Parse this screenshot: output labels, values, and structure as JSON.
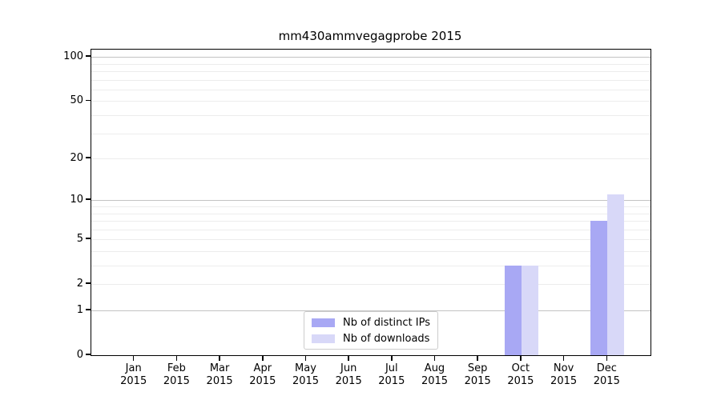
{
  "chart_data": {
    "type": "bar",
    "title": "mm430ammvegagprobe 2015",
    "categories": [
      "Jan",
      "Feb",
      "Mar",
      "Apr",
      "May",
      "Jun",
      "Jul",
      "Aug",
      "Sep",
      "Oct",
      "Nov",
      "Dec"
    ],
    "x_sublabel_year": "2015",
    "series": [
      {
        "name": "Nb of distinct IPs",
        "color": "#a8a8f4",
        "values": [
          0,
          0,
          0,
          0,
          0,
          0,
          0,
          0,
          0,
          3,
          0,
          7
        ]
      },
      {
        "name": "Nb of downloads",
        "color": "#d8d8f8",
        "values": [
          0,
          0,
          0,
          0,
          0,
          0,
          0,
          0,
          0,
          3,
          0,
          11
        ]
      }
    ],
    "yscale": "log1p",
    "ylim": [
      0,
      112
    ],
    "y_tick_values": [
      0,
      1,
      2,
      5,
      10,
      20,
      50,
      100
    ],
    "y_tick_labels": [
      "0",
      "1",
      "2",
      "5",
      "10",
      "20",
      "50",
      "100"
    ],
    "grid_major_values": [
      1,
      10,
      100
    ],
    "grid_minor_values": [
      2,
      3,
      4,
      5,
      6,
      7,
      8,
      9,
      20,
      30,
      40,
      50,
      60,
      70,
      80,
      90
    ],
    "grid": true,
    "legend_position": "lower center",
    "colors": {
      "axis": "#000000",
      "grid_major": "#c3c3c3",
      "grid_minor": "#ececec",
      "background": "#ffffff"
    }
  }
}
